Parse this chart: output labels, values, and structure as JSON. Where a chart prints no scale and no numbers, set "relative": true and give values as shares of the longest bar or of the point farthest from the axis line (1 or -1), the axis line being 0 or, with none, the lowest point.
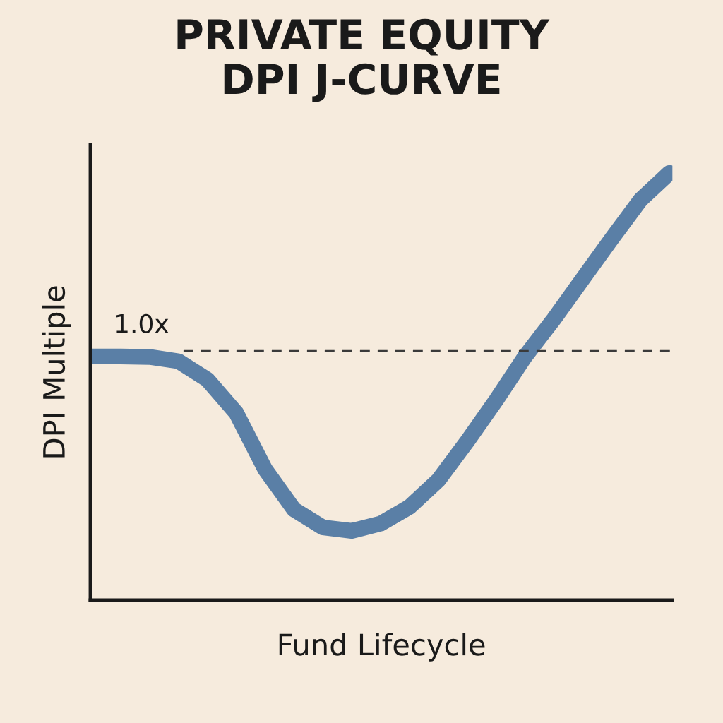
{
  "chart_data": {
    "type": "line",
    "title": "PRIVATE EQUITY\nDPI J-CURVE",
    "xlabel": "Fund Lifecycle",
    "ylabel": "DPI Multiple",
    "relative": true,
    "categories": [
      null,
      null,
      null,
      null,
      null,
      null,
      null,
      null,
      null,
      null,
      null,
      null,
      null,
      null,
      null,
      null,
      null,
      null,
      null,
      null,
      null
    ],
    "series": [
      {
        "color": "#5a7fa6",
        "values": [
          0.57,
          0.57,
          0.569,
          0.559,
          0.516,
          0.438,
          0.306,
          0.212,
          0.17,
          0.162,
          0.179,
          0.218,
          0.281,
          0.372,
          0.468,
          0.57,
          0.658,
          0.752,
          0.846,
          0.937,
          1.0
        ]
      }
    ],
    "ref_lines": [
      {
        "axis": "y",
        "value": 0.583,
        "label": "1.0x",
        "color": "#3a3a3a",
        "line_style": "dashed"
      }
    ],
    "grid": false,
    "legend": false
  }
}
